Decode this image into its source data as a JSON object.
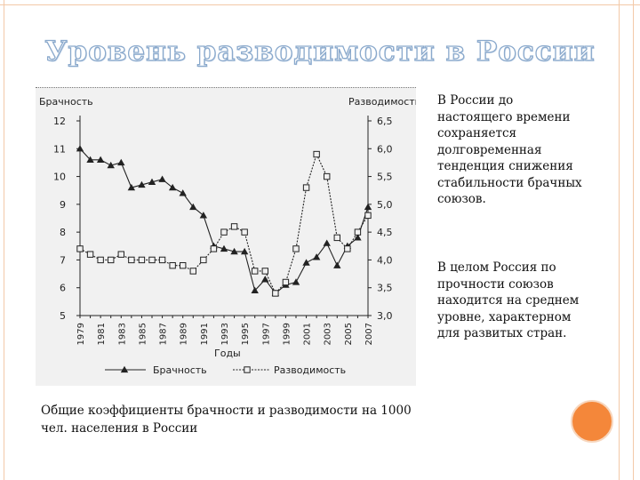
{
  "slide": {
    "title": "Уровень разводимости в России",
    "caption": "Общие коэффициенты брачности и разводимости на 1000 чел. населения в России",
    "notes": [
      "В России до настоящего времени сохраняется долговременная тенденция снижения стабильности брачных союзов.",
      "В целом Россия по прочности союзов находится на среднем уровне, характерном для развитых стран."
    ],
    "accent_color": "#f4873a",
    "frame_color": "#f3c9a8",
    "title_outline_color": "#8aa9cc"
  },
  "chart_data": {
    "type": "line",
    "title": "",
    "xlabel": "Годы",
    "ylabel_left": "Брачность",
    "ylabel_right": "Разводимость",
    "left_ticks": [
      "12",
      "11",
      "10",
      "9",
      "8",
      "7",
      "6",
      "5"
    ],
    "right_ticks": [
      "6,5",
      "6,0",
      "5,5",
      "5,0",
      "4,5",
      "4,0",
      "3,5",
      "3,0"
    ],
    "ylim_left": [
      5,
      12
    ],
    "ylim_right": [
      3.0,
      6.5
    ],
    "x_tick_labels": [
      "1979",
      "1981",
      "1983",
      "1985",
      "1987",
      "1989",
      "1991",
      "1993",
      "1995",
      "1997",
      "1999",
      "2001",
      "2003",
      "2005",
      "2007"
    ],
    "x": [
      1979,
      1980,
      1981,
      1982,
      1983,
      1984,
      1985,
      1986,
      1987,
      1988,
      1989,
      1990,
      1991,
      1992,
      1993,
      1994,
      1995,
      1996,
      1997,
      1998,
      1999,
      2000,
      2001,
      2002,
      2003,
      2004,
      2005,
      2006,
      2007
    ],
    "series": [
      {
        "name": "Брачность",
        "axis": "left",
        "marker": "triangle",
        "line": "solid",
        "values": [
          11.0,
          10.6,
          10.6,
          10.4,
          10.5,
          9.6,
          9.7,
          9.8,
          9.9,
          9.6,
          9.4,
          8.9,
          8.6,
          7.5,
          7.4,
          7.3,
          7.3,
          5.9,
          6.3,
          5.8,
          6.1,
          6.2,
          6.9,
          7.1,
          7.6,
          6.8,
          7.5,
          7.8,
          8.9
        ]
      },
      {
        "name": "Разводимость",
        "axis": "right",
        "marker": "square",
        "line": "dashed",
        "values": [
          4.2,
          4.1,
          4.0,
          4.0,
          4.1,
          4.0,
          4.0,
          4.0,
          4.0,
          3.9,
          3.9,
          3.8,
          4.0,
          4.2,
          4.5,
          4.6,
          4.5,
          3.8,
          3.8,
          3.4,
          3.6,
          4.2,
          5.3,
          5.9,
          5.5,
          4.4,
          4.2,
          4.5,
          4.8
        ]
      }
    ],
    "legend_position": "bottom",
    "grid": false
  }
}
